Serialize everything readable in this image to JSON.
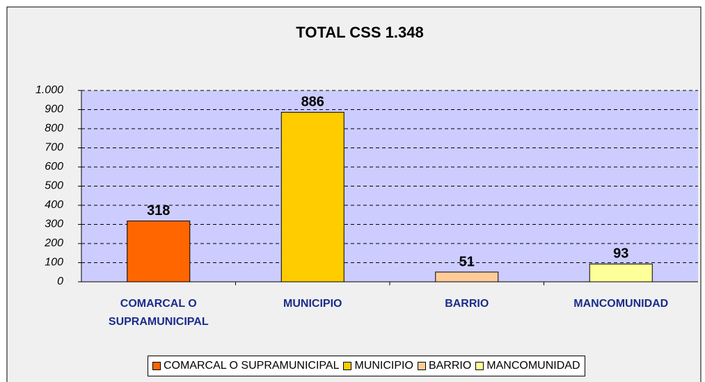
{
  "chart_data": {
    "type": "bar",
    "title": "TOTAL CSS 1.348",
    "categories": [
      "COMARCAL O SUPRAMUNICIPAL",
      "MUNICIPIO",
      "BARRIO",
      "MANCOMUNIDAD"
    ],
    "values": [
      318,
      886,
      51,
      93
    ],
    "colors": [
      "#ff6600",
      "#ffcc00",
      "#ffcc99",
      "#ffff99"
    ],
    "ylim": [
      0,
      1000
    ],
    "yticks": [
      0,
      100,
      200,
      300,
      400,
      500,
      600,
      700,
      800,
      900,
      {
        "value": 1000,
        "label": "1.000"
      }
    ],
    "grid": true,
    "legend": "bottom"
  }
}
